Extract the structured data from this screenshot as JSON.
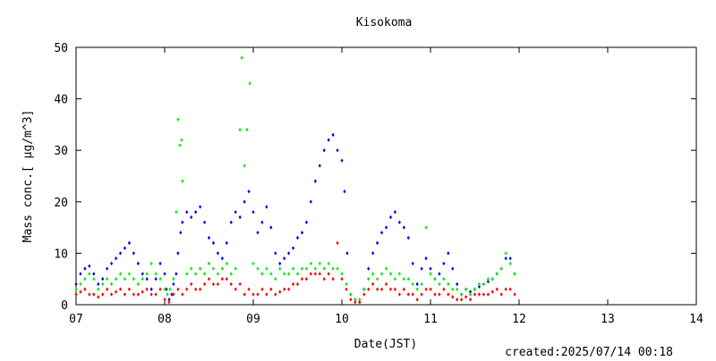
{
  "chart_data": {
    "type": "scatter",
    "title": "Kisokoma",
    "xlabel": "Date(JST)",
    "ylabel": "Mass conc.[ μg/m^3]",
    "x_ticks": [
      "07",
      "08",
      "09",
      "10",
      "11",
      "12",
      "13",
      "14"
    ],
    "xlim": [
      7,
      14
    ],
    "ylim": [
      0,
      50
    ],
    "y_ticks": [
      0,
      10,
      20,
      30,
      40,
      50
    ],
    "grid": false,
    "footer": "created:2025/07/14 00:18",
    "series": [
      {
        "color": "#0000ff",
        "points": [
          [
            7.0,
            4
          ],
          [
            7.05,
            6
          ],
          [
            7.1,
            7
          ],
          [
            7.15,
            7.5
          ],
          [
            7.2,
            6
          ],
          [
            7.25,
            4
          ],
          [
            7.3,
            5
          ],
          [
            7.35,
            7
          ],
          [
            7.4,
            8
          ],
          [
            7.45,
            9
          ],
          [
            7.5,
            10
          ],
          [
            7.55,
            11
          ],
          [
            7.6,
            12
          ],
          [
            7.65,
            10
          ],
          [
            7.7,
            8
          ],
          [
            7.75,
            6
          ],
          [
            7.8,
            5
          ],
          [
            7.85,
            3
          ],
          [
            7.9,
            5
          ],
          [
            7.95,
            8
          ],
          [
            8.0,
            6
          ],
          [
            8.02,
            3
          ],
          [
            8.05,
            1
          ],
          [
            8.08,
            2
          ],
          [
            8.1,
            4
          ],
          [
            8.13,
            6
          ],
          [
            8.15,
            10
          ],
          [
            8.18,
            14
          ],
          [
            8.2,
            16
          ],
          [
            8.25,
            18
          ],
          [
            8.3,
            17
          ],
          [
            8.35,
            18
          ],
          [
            8.4,
            19
          ],
          [
            8.45,
            16
          ],
          [
            8.5,
            13
          ],
          [
            8.55,
            12
          ],
          [
            8.6,
            10
          ],
          [
            8.65,
            9
          ],
          [
            8.7,
            12
          ],
          [
            8.75,
            16
          ],
          [
            8.8,
            18
          ],
          [
            8.85,
            17
          ],
          [
            8.9,
            20
          ],
          [
            8.95,
            22
          ],
          [
            9.0,
            18
          ],
          [
            9.05,
            14
          ],
          [
            9.1,
            16
          ],
          [
            9.15,
            19
          ],
          [
            9.2,
            15
          ],
          [
            9.25,
            10
          ],
          [
            9.3,
            8
          ],
          [
            9.35,
            9
          ],
          [
            9.4,
            10
          ],
          [
            9.45,
            11
          ],
          [
            9.5,
            13
          ],
          [
            9.55,
            14
          ],
          [
            9.6,
            16
          ],
          [
            9.65,
            20
          ],
          [
            9.7,
            24
          ],
          [
            9.75,
            27
          ],
          [
            9.8,
            30
          ],
          [
            9.85,
            32
          ],
          [
            9.9,
            33
          ],
          [
            9.95,
            30
          ],
          [
            10.0,
            28
          ],
          [
            10.03,
            22
          ],
          [
            10.06,
            10
          ],
          [
            10.1,
            2
          ],
          [
            10.15,
            1
          ],
          [
            10.2,
            0.5
          ],
          [
            10.25,
            3
          ],
          [
            10.3,
            7
          ],
          [
            10.35,
            10
          ],
          [
            10.4,
            12
          ],
          [
            10.45,
            14
          ],
          [
            10.5,
            15
          ],
          [
            10.55,
            17
          ],
          [
            10.6,
            18
          ],
          [
            10.65,
            16
          ],
          [
            10.7,
            15
          ],
          [
            10.75,
            13
          ],
          [
            10.8,
            8
          ],
          [
            10.85,
            4
          ],
          [
            10.9,
            7
          ],
          [
            10.95,
            9
          ],
          [
            11.0,
            7
          ],
          [
            11.05,
            5
          ],
          [
            11.1,
            6
          ],
          [
            11.15,
            8
          ],
          [
            11.2,
            10
          ],
          [
            11.25,
            7
          ],
          [
            11.3,
            4
          ],
          [
            11.35,
            2
          ],
          [
            11.4,
            3
          ],
          [
            11.45,
            2.5
          ],
          [
            11.5,
            3
          ],
          [
            11.55,
            3.5
          ],
          [
            11.6,
            4
          ],
          [
            11.65,
            4.5
          ],
          [
            11.7,
            5
          ],
          [
            11.75,
            6
          ],
          [
            11.8,
            7
          ],
          [
            11.85,
            9
          ],
          [
            11.9,
            9
          ],
          [
            11.95,
            6
          ]
        ]
      },
      {
        "color": "#00ee00",
        "points": [
          [
            7.0,
            3
          ],
          [
            7.05,
            4
          ],
          [
            7.1,
            5
          ],
          [
            7.15,
            6
          ],
          [
            7.2,
            5
          ],
          [
            7.25,
            3
          ],
          [
            7.3,
            4
          ],
          [
            7.35,
            5
          ],
          [
            7.4,
            4
          ],
          [
            7.45,
            5
          ],
          [
            7.5,
            6
          ],
          [
            7.55,
            5
          ],
          [
            7.6,
            6
          ],
          [
            7.65,
            5
          ],
          [
            7.7,
            4
          ],
          [
            7.75,
            5
          ],
          [
            7.8,
            6
          ],
          [
            7.85,
            8
          ],
          [
            7.9,
            6
          ],
          [
            7.95,
            5
          ],
          [
            8.0,
            3
          ],
          [
            8.03,
            2
          ],
          [
            8.06,
            3
          ],
          [
            8.1,
            5
          ],
          [
            8.13,
            18
          ],
          [
            8.15,
            36
          ],
          [
            8.17,
            31
          ],
          [
            8.19,
            32
          ],
          [
            8.2,
            24
          ],
          [
            8.25,
            6
          ],
          [
            8.3,
            7
          ],
          [
            8.35,
            6
          ],
          [
            8.4,
            7
          ],
          [
            8.45,
            6
          ],
          [
            8.5,
            8
          ],
          [
            8.55,
            7
          ],
          [
            8.6,
            6
          ],
          [
            8.65,
            7
          ],
          [
            8.7,
            8
          ],
          [
            8.75,
            6
          ],
          [
            8.8,
            7
          ],
          [
            8.85,
            34
          ],
          [
            8.87,
            48
          ],
          [
            8.9,
            27
          ],
          [
            8.93,
            34
          ],
          [
            8.96,
            43
          ],
          [
            9.0,
            8
          ],
          [
            9.05,
            7
          ],
          [
            9.1,
            6
          ],
          [
            9.15,
            7
          ],
          [
            9.2,
            6
          ],
          [
            9.25,
            5
          ],
          [
            9.3,
            7
          ],
          [
            9.35,
            6
          ],
          [
            9.4,
            6
          ],
          [
            9.45,
            7
          ],
          [
            9.5,
            6
          ],
          [
            9.55,
            7
          ],
          [
            9.6,
            7
          ],
          [
            9.65,
            8
          ],
          [
            9.7,
            7
          ],
          [
            9.75,
            8
          ],
          [
            9.8,
            7
          ],
          [
            9.85,
            8
          ],
          [
            9.9,
            7
          ],
          [
            9.95,
            7
          ],
          [
            10.0,
            6
          ],
          [
            10.05,
            4
          ],
          [
            10.1,
            2
          ],
          [
            10.15,
            1
          ],
          [
            10.2,
            1
          ],
          [
            10.25,
            3
          ],
          [
            10.3,
            5
          ],
          [
            10.35,
            6
          ],
          [
            10.4,
            5
          ],
          [
            10.45,
            6
          ],
          [
            10.5,
            7
          ],
          [
            10.55,
            6
          ],
          [
            10.6,
            5
          ],
          [
            10.65,
            6
          ],
          [
            10.7,
            5
          ],
          [
            10.75,
            5
          ],
          [
            10.8,
            4
          ],
          [
            10.85,
            3
          ],
          [
            10.9,
            4
          ],
          [
            10.95,
            15
          ],
          [
            11.0,
            6
          ],
          [
            11.05,
            5
          ],
          [
            11.1,
            4
          ],
          [
            11.15,
            5
          ],
          [
            11.2,
            4
          ],
          [
            11.25,
            3
          ],
          [
            11.3,
            3
          ],
          [
            11.35,
            2
          ],
          [
            11.4,
            3
          ],
          [
            11.45,
            2
          ],
          [
            11.5,
            3
          ],
          [
            11.55,
            4
          ],
          [
            11.6,
            4
          ],
          [
            11.65,
            5
          ],
          [
            11.7,
            5
          ],
          [
            11.75,
            6
          ],
          [
            11.8,
            7
          ],
          [
            11.85,
            10
          ],
          [
            11.9,
            8
          ],
          [
            11.95,
            6
          ]
        ]
      },
      {
        "color": "#ff0000",
        "points": [
          [
            7.0,
            2
          ],
          [
            7.05,
            2.5
          ],
          [
            7.1,
            3
          ],
          [
            7.15,
            2
          ],
          [
            7.2,
            2
          ],
          [
            7.25,
            1.5
          ],
          [
            7.3,
            2
          ],
          [
            7.35,
            3
          ],
          [
            7.4,
            2
          ],
          [
            7.45,
            2.5
          ],
          [
            7.5,
            3
          ],
          [
            7.55,
            2
          ],
          [
            7.6,
            3
          ],
          [
            7.65,
            2
          ],
          [
            7.7,
            2
          ],
          [
            7.75,
            2.5
          ],
          [
            7.8,
            3
          ],
          [
            7.85,
            2
          ],
          [
            7.9,
            2
          ],
          [
            7.95,
            3
          ],
          [
            8.0,
            1
          ],
          [
            8.05,
            0.5
          ],
          [
            8.1,
            2
          ],
          [
            8.15,
            3
          ],
          [
            8.2,
            2
          ],
          [
            8.25,
            3
          ],
          [
            8.3,
            4
          ],
          [
            8.35,
            3
          ],
          [
            8.4,
            3
          ],
          [
            8.45,
            4
          ],
          [
            8.5,
            5
          ],
          [
            8.55,
            4
          ],
          [
            8.6,
            4
          ],
          [
            8.65,
            5
          ],
          [
            8.7,
            5
          ],
          [
            8.75,
            4
          ],
          [
            8.8,
            3
          ],
          [
            8.85,
            4
          ],
          [
            8.9,
            2
          ],
          [
            8.95,
            3
          ],
          [
            9.0,
            2
          ],
          [
            9.05,
            2
          ],
          [
            9.1,
            3
          ],
          [
            9.15,
            2
          ],
          [
            9.2,
            3
          ],
          [
            9.25,
            2
          ],
          [
            9.3,
            2.5
          ],
          [
            9.35,
            3
          ],
          [
            9.4,
            3
          ],
          [
            9.45,
            4
          ],
          [
            9.5,
            4
          ],
          [
            9.55,
            5
          ],
          [
            9.6,
            5
          ],
          [
            9.65,
            6
          ],
          [
            9.7,
            6
          ],
          [
            9.75,
            6
          ],
          [
            9.8,
            5
          ],
          [
            9.85,
            6
          ],
          [
            9.9,
            5
          ],
          [
            9.95,
            12
          ],
          [
            10.0,
            5
          ],
          [
            10.05,
            3
          ],
          [
            10.1,
            1
          ],
          [
            10.15,
            0.5
          ],
          [
            10.2,
            0.5
          ],
          [
            10.25,
            2
          ],
          [
            10.3,
            3
          ],
          [
            10.35,
            4
          ],
          [
            10.4,
            3
          ],
          [
            10.45,
            3
          ],
          [
            10.5,
            4
          ],
          [
            10.55,
            3
          ],
          [
            10.6,
            3
          ],
          [
            10.65,
            2
          ],
          [
            10.7,
            3
          ],
          [
            10.75,
            2
          ],
          [
            10.8,
            2
          ],
          [
            10.85,
            1
          ],
          [
            10.9,
            2
          ],
          [
            10.95,
            3
          ],
          [
            11.0,
            3
          ],
          [
            11.05,
            2
          ],
          [
            11.1,
            2
          ],
          [
            11.15,
            3
          ],
          [
            11.2,
            2
          ],
          [
            11.25,
            1.5
          ],
          [
            11.3,
            1
          ],
          [
            11.35,
            1
          ],
          [
            11.4,
            1.5
          ],
          [
            11.45,
            1
          ],
          [
            11.5,
            2
          ],
          [
            11.55,
            2
          ],
          [
            11.6,
            2
          ],
          [
            11.65,
            2
          ],
          [
            11.7,
            2.5
          ],
          [
            11.75,
            3
          ],
          [
            11.8,
            2
          ],
          [
            11.85,
            3
          ],
          [
            11.9,
            3
          ],
          [
            11.95,
            2
          ]
        ]
      }
    ]
  }
}
